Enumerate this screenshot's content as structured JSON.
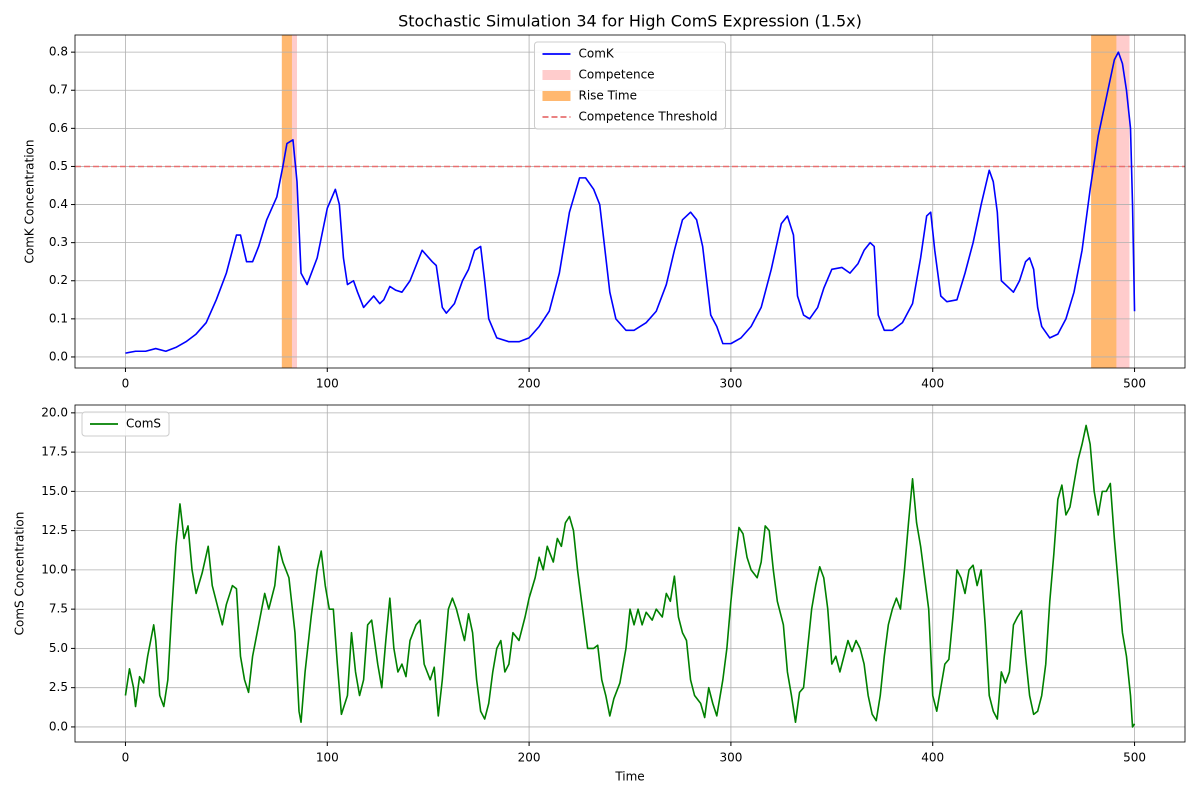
{
  "chart_data": [
    {
      "type": "line",
      "title": "Stochastic Simulation 34 for High ComS Expression (1.5x)",
      "ylabel": "ComK Concentration",
      "x": [
        0,
        5,
        10,
        15,
        20,
        25,
        30,
        35,
        40,
        45,
        50,
        55,
        57,
        60,
        63,
        66,
        70,
        75,
        78,
        80,
        83,
        85,
        87,
        90,
        95,
        100,
        104,
        106,
        108,
        110,
        113,
        115,
        118,
        123,
        126,
        128,
        131,
        134,
        137,
        141,
        147,
        152,
        154,
        157,
        159,
        163,
        167,
        170,
        173,
        176,
        178,
        180,
        184,
        190,
        195,
        200,
        205,
        210,
        215,
        220,
        225,
        228,
        232,
        235,
        240,
        243,
        248,
        252,
        258,
        263,
        268,
        272,
        276,
        280,
        283,
        286,
        288,
        290,
        293,
        296,
        300,
        305,
        310,
        315,
        320,
        325,
        328,
        331,
        333,
        336,
        339,
        343,
        346,
        350,
        355,
        359,
        363,
        366,
        369,
        371,
        373,
        376,
        380,
        385,
        390,
        394,
        397,
        399,
        401,
        404,
        407,
        412,
        416,
        420,
        424,
        428,
        430,
        432,
        434,
        437,
        440,
        443,
        446,
        448,
        450,
        452,
        454,
        458,
        462,
        466,
        470,
        474,
        478,
        482,
        486,
        490,
        492,
        494,
        496,
        498,
        499,
        500
      ],
      "series": [
        {
          "name": "ComK",
          "color": "#0000ff",
          "values": [
            0.01,
            0.015,
            0.015,
            0.022,
            0.015,
            0.025,
            0.04,
            0.06,
            0.09,
            0.15,
            0.22,
            0.32,
            0.32,
            0.25,
            0.25,
            0.29,
            0.36,
            0.42,
            0.5,
            0.56,
            0.57,
            0.46,
            0.22,
            0.19,
            0.26,
            0.39,
            0.44,
            0.4,
            0.26,
            0.19,
            0.2,
            0.17,
            0.13,
            0.16,
            0.14,
            0.15,
            0.185,
            0.175,
            0.17,
            0.2,
            0.28,
            0.25,
            0.24,
            0.13,
            0.115,
            0.14,
            0.2,
            0.23,
            0.28,
            0.29,
            0.2,
            0.1,
            0.05,
            0.04,
            0.04,
            0.05,
            0.08,
            0.12,
            0.22,
            0.38,
            0.47,
            0.47,
            0.44,
            0.4,
            0.17,
            0.1,
            0.07,
            0.07,
            0.09,
            0.12,
            0.19,
            0.28,
            0.36,
            0.38,
            0.36,
            0.29,
            0.2,
            0.11,
            0.08,
            0.035,
            0.035,
            0.05,
            0.08,
            0.13,
            0.23,
            0.35,
            0.37,
            0.32,
            0.16,
            0.11,
            0.1,
            0.13,
            0.18,
            0.23,
            0.235,
            0.22,
            0.245,
            0.28,
            0.3,
            0.29,
            0.11,
            0.07,
            0.07,
            0.09,
            0.14,
            0.26,
            0.37,
            0.38,
            0.28,
            0.16,
            0.145,
            0.15,
            0.22,
            0.3,
            0.4,
            0.49,
            0.46,
            0.38,
            0.2,
            0.185,
            0.17,
            0.2,
            0.25,
            0.26,
            0.23,
            0.13,
            0.08,
            0.05,
            0.06,
            0.1,
            0.17,
            0.28,
            0.44,
            0.58,
            0.68,
            0.78,
            0.8,
            0.77,
            0.7,
            0.6,
            0.4,
            0.12
          ]
        }
      ],
      "spans": [
        {
          "name": "Competence",
          "color": "#ffcccc",
          "ranges": [
            [
              77.5,
              85
            ],
            [
              478.5,
              497.5
            ]
          ]
        },
        {
          "name": "Rise Time",
          "color": "#ffb870",
          "ranges": [
            [
              77.5,
              82.5
            ],
            [
              478.5,
              491
            ]
          ]
        }
      ],
      "threshold": {
        "name": "Competence Threshold",
        "value": 0.5,
        "color": "#e87070"
      },
      "xlim": [
        -25,
        525
      ],
      "xticks": [
        0,
        100,
        200,
        300,
        400,
        500
      ],
      "ylim": [
        -0.029,
        0.845
      ],
      "yticks": [
        {
          "value": 0,
          "label": "0.0"
        },
        0.1,
        0.2,
        0.3,
        0.4,
        0.5,
        0.6,
        0.7,
        0.8
      ],
      "grid": true,
      "legend": "upper center"
    },
    {
      "type": "line",
      "xlabel": "Time",
      "ylabel": "ComS Concentration",
      "x": [
        0,
        2,
        4,
        5,
        7,
        9,
        11,
        14,
        15,
        17,
        19,
        21,
        23,
        25,
        27,
        29,
        31,
        33,
        35,
        38,
        41,
        43,
        46,
        48,
        50,
        53,
        55,
        57,
        59,
        61,
        63,
        66,
        69,
        71,
        74,
        76,
        78,
        81,
        84,
        86,
        87,
        89,
        92,
        95,
        97,
        99,
        101,
        103,
        105,
        107,
        110,
        112,
        114,
        116,
        118,
        120,
        122,
        125,
        127,
        129,
        131,
        133,
        135,
        137,
        139,
        141,
        144,
        146,
        148,
        151,
        153,
        155,
        157,
        160,
        162,
        164,
        166,
        168,
        170,
        172,
        174,
        176,
        178,
        180,
        182,
        184,
        186,
        188,
        190,
        192,
        195,
        198,
        200,
        203,
        205,
        207,
        209,
        212,
        214,
        216,
        218,
        220,
        222,
        224,
        227,
        229,
        232,
        234,
        236,
        238,
        240,
        242,
        245,
        248,
        250,
        252,
        254,
        256,
        258,
        261,
        263,
        266,
        268,
        270,
        272,
        274,
        276,
        278,
        280,
        282,
        285,
        287,
        289,
        291,
        293,
        296,
        298,
        300,
        302,
        304,
        306,
        308,
        310,
        313,
        315,
        317,
        319,
        321,
        323,
        326,
        328,
        330,
        332,
        334,
        336,
        338,
        340,
        342,
        344,
        346,
        348,
        350,
        352,
        354,
        356,
        358,
        360,
        362,
        364,
        366,
        368,
        370,
        372,
        374,
        376,
        378,
        380,
        382,
        384,
        386,
        388,
        390,
        392,
        394,
        396,
        398,
        400,
        402,
        404,
        406,
        408,
        410,
        412,
        414,
        416,
        418,
        420,
        422,
        424,
        426,
        428,
        430,
        432,
        434,
        436,
        438,
        440,
        442,
        444,
        446,
        448,
        450,
        452,
        454,
        456,
        458,
        460,
        462,
        464,
        466,
        468,
        470,
        472,
        474,
        476,
        478,
        480,
        482,
        484,
        486,
        488,
        490,
        492,
        494,
        496,
        498,
        499,
        500
      ],
      "series": [
        {
          "name": "ComS",
          "color": "#008000",
          "values": [
            2.0,
            3.7,
            2.5,
            1.3,
            3.2,
            2.8,
            4.5,
            6.5,
            5.5,
            2.0,
            1.3,
            3.0,
            7.5,
            11.5,
            14.2,
            12.0,
            12.8,
            10.0,
            8.5,
            9.8,
            11.5,
            9.0,
            7.5,
            6.5,
            7.8,
            9.0,
            8.8,
            4.5,
            3.0,
            2.2,
            4.5,
            6.5,
            8.5,
            7.5,
            9.0,
            11.5,
            10.5,
            9.5,
            6.0,
            1.0,
            0.3,
            3.5,
            7.0,
            10.0,
            11.2,
            9.0,
            7.5,
            7.5,
            4.0,
            0.8,
            2.0,
            6.0,
            3.5,
            2.0,
            3.0,
            6.5,
            6.8,
            4.0,
            2.5,
            5.5,
            8.2,
            5.0,
            3.5,
            4.0,
            3.2,
            5.5,
            6.5,
            6.8,
            4.0,
            3.0,
            3.8,
            0.7,
            3.0,
            7.5,
            8.2,
            7.5,
            6.5,
            5.5,
            7.2,
            6.0,
            3.0,
            1.0,
            0.5,
            1.5,
            3.5,
            5.0,
            5.5,
            3.5,
            4.0,
            6.0,
            5.5,
            7.0,
            8.2,
            9.5,
            10.8,
            10.0,
            11.5,
            10.5,
            12.0,
            11.5,
            13.0,
            13.4,
            12.5,
            10.0,
            7.0,
            5.0,
            5.0,
            5.2,
            3.0,
            2.0,
            0.7,
            1.8,
            2.8,
            5.0,
            7.5,
            6.5,
            7.5,
            6.5,
            7.3,
            6.8,
            7.5,
            7.0,
            8.5,
            8.0,
            9.6,
            7.0,
            6.0,
            5.5,
            3.0,
            2.0,
            1.5,
            0.6,
            2.5,
            1.5,
            0.7,
            3.0,
            5.0,
            8.0,
            10.5,
            12.7,
            12.3,
            10.8,
            10.0,
            9.5,
            10.5,
            12.8,
            12.5,
            10.0,
            8.0,
            6.5,
            3.5,
            2.0,
            0.3,
            2.2,
            2.5,
            5.0,
            7.5,
            9.0,
            10.2,
            9.5,
            7.5,
            4.0,
            4.5,
            3.5,
            4.5,
            5.5,
            4.8,
            5.5,
            5.0,
            4.0,
            2.0,
            0.8,
            0.4,
            2.0,
            4.5,
            6.5,
            7.5,
            8.2,
            7.5,
            10.0,
            13.0,
            15.8,
            13.0,
            11.5,
            9.5,
            7.5,
            2.0,
            1.0,
            2.5,
            4.0,
            4.3,
            7.0,
            10.0,
            9.5,
            8.5,
            10.0,
            10.3,
            9.0,
            10.0,
            6.5,
            2.0,
            1.0,
            0.5,
            3.5,
            2.8,
            3.5,
            6.5,
            7.0,
            7.4,
            4.5,
            2.0,
            0.8,
            1.0,
            2.0,
            4.0,
            8.0,
            11.0,
            14.5,
            15.4,
            13.5,
            14.0,
            15.5,
            17.0,
            18.0,
            19.2,
            18.0,
            15.0,
            13.5,
            15.0,
            15.0,
            15.5,
            12.0,
            9.0,
            6.0,
            4.5,
            2.0,
            0.0,
            0.2
          ]
        }
      ],
      "xlim": [
        -25,
        525
      ],
      "xticks": [
        0,
        100,
        200,
        300,
        400,
        500
      ],
      "ylim": [
        -0.96,
        20.5
      ],
      "yticks": [
        {
          "value": 0,
          "label": "0.0"
        },
        2.5,
        {
          "value": 5,
          "label": "5.0"
        },
        7.5,
        {
          "value": 10,
          "label": "10.0"
        },
        12.5,
        {
          "value": 15,
          "label": "15.0"
        },
        17.5,
        {
          "value": 20,
          "label": "20.0"
        }
      ],
      "grid": true,
      "legend": "upper left"
    }
  ]
}
